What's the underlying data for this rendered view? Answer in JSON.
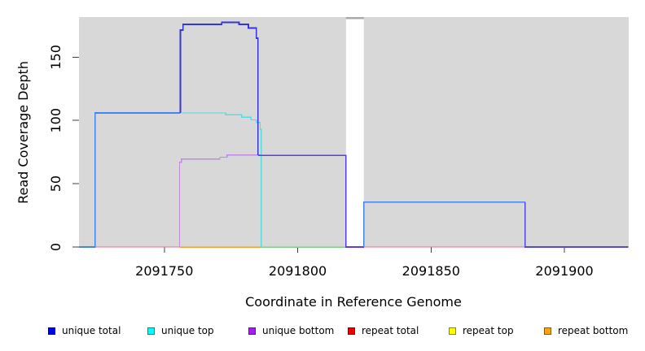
{
  "chart_data": {
    "type": "line",
    "title": "",
    "xlabel": "Coordinate in Reference Genome",
    "ylabel": "Read Coverage Depth",
    "x_ticks": [
      2091750,
      2091800,
      2091850,
      2091900
    ],
    "y_ticks": [
      0,
      50,
      100,
      150
    ],
    "xlim": [
      2091718,
      2091924
    ],
    "ylim": [
      0,
      182
    ],
    "grid": false,
    "legend_position": "bottom",
    "panel_bg": "#d8d8d8",
    "gap": {
      "x_from": 2091818.1,
      "x_to": 2091824.8,
      "fill": "#ffffff",
      "top_bar_color": "#a9a9a9"
    },
    "series": [
      {
        "name": "repeat total",
        "legend_color": "#ee0000",
        "segments": [
          {
            "color": "#ee6d8a",
            "width": 1.3,
            "points": [
              [
                2091722.6,
                0
              ],
              [
                2091818.1,
                0
              ]
            ]
          },
          {
            "color": "#ee6d8a",
            "width": 1.3,
            "points": [
              [
                2091824.8,
                0
              ],
              [
                2091924,
                0
              ]
            ]
          }
        ]
      },
      {
        "name": "repeat bottom",
        "legend_color": "#ffa500",
        "segments": [
          {
            "color": "#ff9e2e",
            "width": 1.5,
            "points": [
              [
                2091755.9,
                0
              ],
              [
                2091785.9,
                0
              ]
            ]
          }
        ]
      },
      {
        "name": "green overlap segment",
        "legend_color": "#84cf84",
        "segments": [
          {
            "color": "#84cf84",
            "width": 1.5,
            "points": [
              [
                2091785.9,
                0
              ],
              [
                2091818.1,
                0
              ]
            ]
          }
        ]
      },
      {
        "name": "unique top",
        "legend_color": "#00ffff",
        "segments": [
          {
            "color": "#55dde0",
            "width": 1.3,
            "points": [
              [
                2091756.6,
                106
              ],
              [
                2091773,
                106
              ],
              [
                2091773,
                104.5
              ],
              [
                2091779,
                104.5
              ],
              [
                2091779,
                102.5
              ],
              [
                2091782.5,
                102.5
              ],
              [
                2091782.5,
                100.5
              ],
              [
                2091784.5,
                100.5
              ],
              [
                2091784.5,
                98.5
              ],
              [
                2091785.9,
                98.5
              ],
              [
                2091785.9,
                93
              ],
              [
                2091786.3,
                93
              ],
              [
                2091786.3,
                0
              ]
            ]
          }
        ]
      },
      {
        "name": "unique bottom",
        "legend_color": "#a020f0",
        "segments": [
          {
            "color": "#c18ae0",
            "width": 1.3,
            "points": [
              [
                2091755.7,
                0
              ],
              [
                2091755.7,
                67
              ],
              [
                2091756.4,
                67
              ],
              [
                2091756.4,
                69.5
              ],
              [
                2091770.8,
                69.5
              ],
              [
                2091770.8,
                71
              ],
              [
                2091773.5,
                71
              ],
              [
                2091773.5,
                72.7
              ],
              [
                2091786.3,
                72.7
              ]
            ]
          }
        ]
      },
      {
        "name": "unique total",
        "legend_color": "#0000ee",
        "segments": [
          {
            "color": "#4484ec",
            "width": 1.7,
            "points": [
              [
                2091718,
                0
              ],
              [
                2091724,
                0
              ],
              [
                2091724,
                106
              ],
              [
                2091756,
                106
              ]
            ]
          },
          {
            "color": "#3636d6",
            "width": 1.7,
            "points": [
              [
                2091756,
                106
              ],
              [
                2091756,
                171.5
              ],
              [
                2091757,
                171.5
              ],
              [
                2091757,
                176
              ],
              [
                2091771.5,
                176
              ],
              [
                2091771.5,
                177.5
              ],
              [
                2091778,
                177.5
              ],
              [
                2091778,
                176
              ],
              [
                2091781.5,
                176
              ],
              [
                2091781.5,
                173
              ],
              [
                2091784.5,
                173
              ],
              [
                2091784.5,
                165
              ],
              [
                2091785.1,
                165
              ],
              [
                2091785.1,
                72.5
              ]
            ]
          },
          {
            "color": "#5c3cea",
            "width": 1.7,
            "points": [
              [
                2091785.1,
                72.5
              ],
              [
                2091818.1,
                72.5
              ],
              [
                2091818.1,
                0
              ],
              [
                2091824.8,
                0
              ]
            ]
          },
          {
            "color": "#4484ec",
            "width": 1.7,
            "points": [
              [
                2091824.8,
                0
              ],
              [
                2091824.8,
                35.5
              ],
              [
                2091885.2,
                35.5
              ]
            ]
          },
          {
            "color": "#5348e2",
            "width": 1.7,
            "points": [
              [
                2091885.2,
                35.5
              ],
              [
                2091885.2,
                0
              ],
              [
                2091924,
                0
              ]
            ]
          }
        ]
      }
    ]
  },
  "legend": {
    "items": [
      {
        "label": "unique total",
        "color": "#0000ee",
        "border": "#000088"
      },
      {
        "label": "unique top",
        "color": "#00ffff",
        "border": "#008b8b"
      },
      {
        "label": "unique bottom",
        "color": "#a020f0",
        "border": "#551a8b"
      },
      {
        "label": "repeat total",
        "color": "#ee0000",
        "border": "#8b0000"
      },
      {
        "label": "repeat top",
        "color": "#ffff00",
        "border": "#8b8b00"
      },
      {
        "label": "repeat bottom",
        "color": "#ffa500",
        "border": "#8b5a00"
      }
    ]
  }
}
